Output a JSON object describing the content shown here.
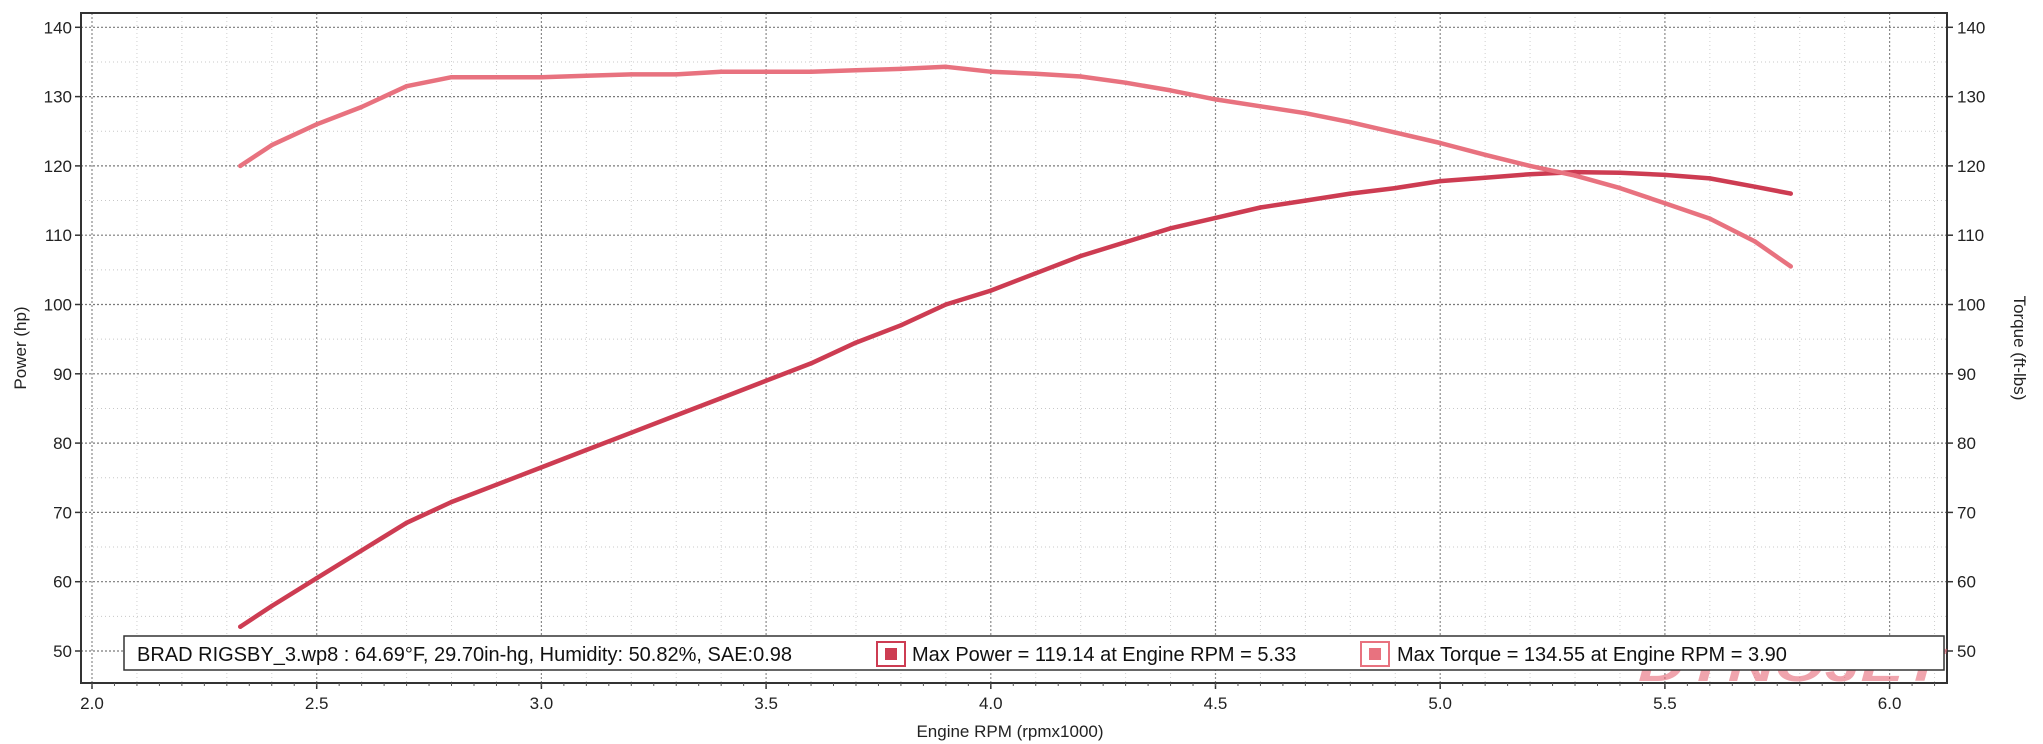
{
  "chart_data": {
    "type": "line",
    "xlabel": "Engine RPM (rpmx1000)",
    "ylabel_left": "Power (hp)",
    "ylabel_right": "Torque (ft-lbs)",
    "xlim": [
      2.0,
      6.15
    ],
    "ylim": [
      46,
      141
    ],
    "x_ticks": [
      "2.0",
      "2.5",
      "3.0",
      "3.5",
      "4.0",
      "4.5",
      "5.0",
      "5.5",
      "6.0"
    ],
    "y_ticks": [
      "140",
      "130",
      "120",
      "110",
      "100",
      "90",
      "80",
      "70",
      "60",
      "50"
    ],
    "y_ticks_right": [
      "140",
      "130",
      "120",
      "110",
      "100",
      "90",
      "80",
      "70",
      "60",
      "50"
    ],
    "grid": true,
    "series": [
      {
        "name": "Power",
        "color": "#cd3c52",
        "x": [
          2.33,
          2.4,
          2.5,
          2.6,
          2.7,
          2.8,
          2.9,
          3.0,
          3.1,
          3.2,
          3.3,
          3.4,
          3.5,
          3.6,
          3.7,
          3.8,
          3.9,
          4.0,
          4.1,
          4.2,
          4.3,
          4.4,
          4.5,
          4.6,
          4.7,
          4.8,
          4.9,
          5.0,
          5.1,
          5.2,
          5.3,
          5.4,
          5.5,
          5.6,
          5.7,
          5.78
        ],
        "y": [
          53.5,
          56.5,
          60.5,
          64.5,
          68.5,
          71.5,
          74.0,
          76.5,
          79.0,
          81.5,
          84.0,
          86.5,
          89.0,
          91.5,
          94.5,
          97.0,
          100.0,
          102.0,
          104.5,
          107.0,
          109.0,
          111.0,
          112.5,
          114.0,
          115.0,
          116.0,
          116.8,
          117.8,
          118.3,
          118.8,
          119.1,
          119.0,
          118.7,
          118.2,
          117.0,
          116.0
        ]
      },
      {
        "name": "Torque",
        "color": "#e8727f",
        "x": [
          2.33,
          2.4,
          2.5,
          2.6,
          2.7,
          2.8,
          2.9,
          3.0,
          3.1,
          3.2,
          3.3,
          3.4,
          3.5,
          3.6,
          3.7,
          3.8,
          3.9,
          4.0,
          4.1,
          4.2,
          4.3,
          4.4,
          4.5,
          4.6,
          4.7,
          4.8,
          4.9,
          5.0,
          5.1,
          5.2,
          5.3,
          5.4,
          5.5,
          5.6,
          5.7,
          5.78
        ],
        "y": [
          120.0,
          123.0,
          126.0,
          128.5,
          131.5,
          132.8,
          132.8,
          132.8,
          133.0,
          133.2,
          133.2,
          133.6,
          133.6,
          133.6,
          133.8,
          134.0,
          134.3,
          133.6,
          133.3,
          132.9,
          132.0,
          130.9,
          129.6,
          128.6,
          127.6,
          126.3,
          124.8,
          123.3,
          121.6,
          120.0,
          118.6,
          116.8,
          114.6,
          112.4,
          109.1,
          105.5
        ]
      }
    ]
  },
  "legend": {
    "run_info": "BRAD RIGSBY_3.wp8 : 64.69°F, 29.70in-hg, Humidity: 50.82%, SAE:0.98",
    "max_power": "Max Power = 119.14 at Engine RPM = 5.33",
    "max_torque": "Max Torque = 134.55 at Engine RPM = 3.90"
  },
  "logo": {
    "text": "DYNOJET"
  }
}
